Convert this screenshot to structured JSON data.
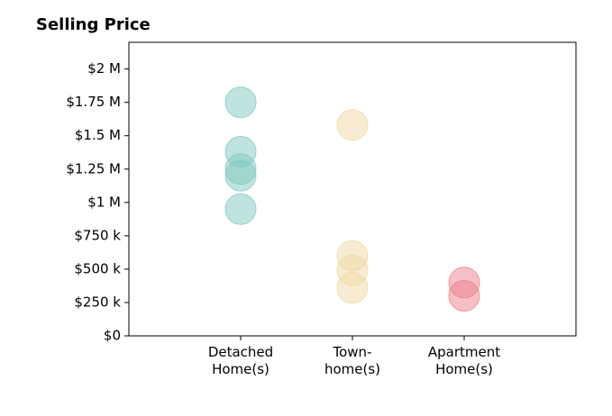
{
  "chart_data": {
    "type": "strip",
    "title": "Selling Price",
    "categories": [
      [
        "Detached",
        "Home(s)"
      ],
      [
        "Town-",
        "home(s)"
      ],
      [
        "Apartment",
        "Home(s)"
      ]
    ],
    "colors": [
      "#7fc9bf",
      "#f0d9a3",
      "#ee7f8e"
    ],
    "values": [
      [
        1750000,
        1380000,
        1250000,
        1200000,
        950000
      ],
      [
        1580000,
        600000,
        490000,
        360000
      ],
      [
        400000,
        300000
      ]
    ],
    "ylim": [
      0,
      2200000
    ],
    "yticks": [
      {
        "value": 0,
        "label": "$0"
      },
      {
        "value": 250000,
        "label": "$250 k"
      },
      {
        "value": 500000,
        "label": "$500 k"
      },
      {
        "value": 750000,
        "label": "$750 k"
      },
      {
        "value": 1000000,
        "label": "$1 M"
      },
      {
        "value": 1250000,
        "label": "$1.25 M"
      },
      {
        "value": 1500000,
        "label": "$1.5 M"
      },
      {
        "value": 1750000,
        "label": "$1.75 M"
      },
      {
        "value": 2000000,
        "label": "$2 M"
      }
    ]
  }
}
